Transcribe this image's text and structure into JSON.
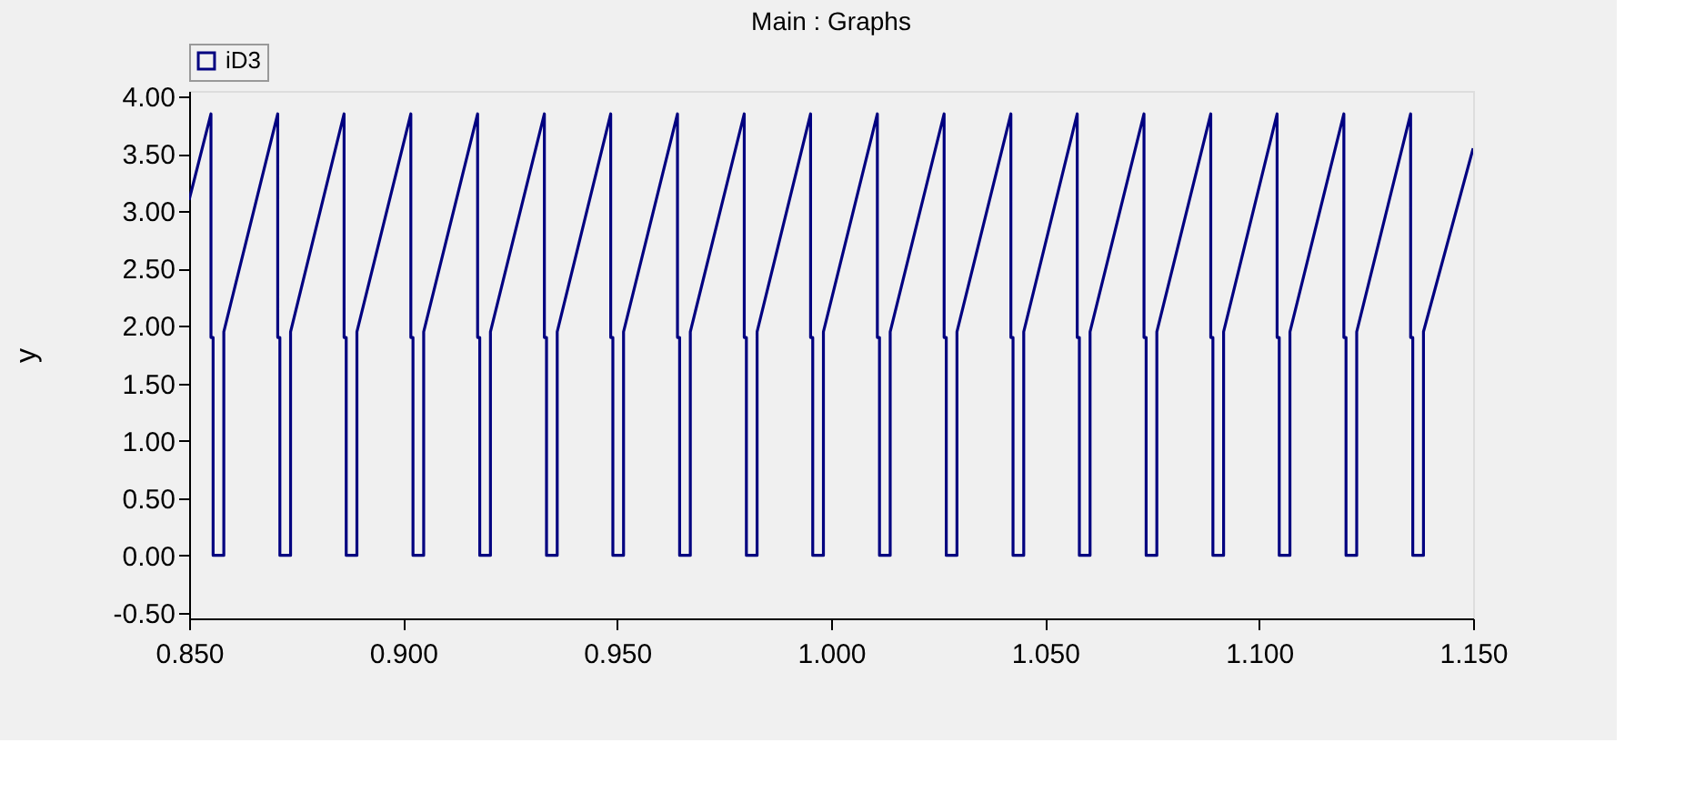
{
  "chart_data": {
    "type": "line",
    "title": "Main : Graphs",
    "ylabel": "y",
    "xlim": [
      0.85,
      1.15
    ],
    "ylim": [
      -0.55,
      4.05
    ],
    "xticks": [
      {
        "value": 0.85,
        "label": "0.850"
      },
      {
        "value": 0.9,
        "label": "0.900"
      },
      {
        "value": 0.95,
        "label": "0.950"
      },
      {
        "value": 1.0,
        "label": "1.000"
      },
      {
        "value": 1.05,
        "label": "1.050"
      },
      {
        "value": 1.1,
        "label": "1.100"
      },
      {
        "value": 1.15,
        "label": "1.150"
      }
    ],
    "yticks": [
      {
        "value": -0.5,
        "label": "-0.50"
      },
      {
        "value": 0,
        "label": "0.00"
      },
      {
        "value": 0.5,
        "label": "0.50"
      },
      {
        "value": 1,
        "label": "1.00"
      },
      {
        "value": 1.5,
        "label": "1.50"
      },
      {
        "value": 2,
        "label": "2.00"
      },
      {
        "value": 2.5,
        "label": "2.50"
      },
      {
        "value": 3,
        "label": "3.00"
      },
      {
        "value": 3.5,
        "label": "3.50"
      },
      {
        "value": 4,
        "label": "4.00"
      }
    ],
    "grid": false,
    "legend": "top left",
    "marker": "none",
    "line_style": "solid",
    "series": [
      {
        "name": "iD3",
        "color": "#000080",
        "x": [
          0.85,
          0.8551,
          0.8551,
          0.8556,
          0.8556,
          0.8581,
          0.8581,
          0.8707,
          0.8707,
          0.8712,
          0.8712,
          0.8737,
          0.8737,
          0.8862,
          0.8862,
          0.8867,
          0.8867,
          0.8892,
          0.8892,
          0.9018,
          0.9018,
          0.9023,
          0.9023,
          0.9048,
          0.9048,
          0.9174,
          0.9174,
          0.9179,
          0.9179,
          0.9204,
          0.9204,
          0.933,
          0.933,
          0.9335,
          0.9335,
          0.936,
          0.936,
          0.9485,
          0.9485,
          0.949,
          0.949,
          0.9515,
          0.9515,
          0.9641,
          0.9641,
          0.9646,
          0.9646,
          0.9671,
          0.9671,
          0.9797,
          0.9797,
          0.9802,
          0.9802,
          0.9827,
          0.9827,
          0.9952,
          0.9952,
          0.9957,
          0.9957,
          0.9982,
          0.9982,
          1.0108,
          1.0108,
          1.0113,
          1.0113,
          1.0138,
          1.0138,
          1.0264,
          1.0264,
          1.0269,
          1.0269,
          1.0294,
          1.0294,
          1.042,
          1.042,
          1.0425,
          1.0425,
          1.045,
          1.045,
          1.0575,
          1.0575,
          1.058,
          1.058,
          1.0605,
          1.0605,
          1.0731,
          1.0731,
          1.0736,
          1.0736,
          1.0761,
          1.0761,
          1.0887,
          1.0887,
          1.0892,
          1.0892,
          1.0917,
          1.0917,
          1.1042,
          1.1042,
          1.1047,
          1.1047,
          1.1072,
          1.1072,
          1.1198,
          1.1198,
          1.1203,
          1.1203,
          1.1228,
          1.1228,
          1.1354,
          1.1354,
          1.1359,
          1.1359,
          1.1384,
          1.1384,
          1.15
        ],
        "values": [
          3.1,
          3.85,
          1.9,
          1.9,
          0,
          0,
          1.95,
          3.85,
          1.9,
          1.9,
          0,
          0,
          1.95,
          3.85,
          1.9,
          1.9,
          0,
          0,
          1.95,
          3.85,
          1.9,
          1.9,
          0,
          0,
          1.95,
          3.85,
          1.9,
          1.9,
          0,
          0,
          1.95,
          3.85,
          1.9,
          1.9,
          0,
          0,
          1.95,
          3.85,
          1.9,
          1.9,
          0,
          0,
          1.95,
          3.85,
          1.9,
          1.9,
          0,
          0,
          1.95,
          3.85,
          1.9,
          1.9,
          0,
          0,
          1.95,
          3.85,
          1.9,
          1.9,
          0,
          0,
          1.95,
          3.85,
          1.9,
          1.9,
          0,
          0,
          1.95,
          3.85,
          1.9,
          1.9,
          0,
          0,
          1.95,
          3.85,
          1.9,
          1.9,
          0,
          0,
          1.95,
          3.85,
          1.9,
          1.9,
          0,
          0,
          1.95,
          3.85,
          1.9,
          1.9,
          0,
          0,
          1.95,
          3.85,
          1.9,
          1.9,
          0,
          0,
          1.95,
          3.85,
          1.9,
          1.9,
          0,
          0,
          1.95,
          3.85,
          1.9,
          1.9,
          0,
          0,
          1.95,
          3.85,
          1.9,
          1.9,
          0,
          0,
          1.95,
          3.55
        ]
      }
    ]
  }
}
